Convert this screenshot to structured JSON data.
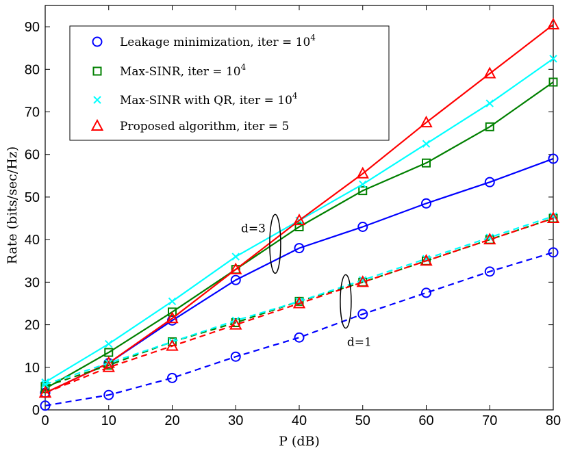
{
  "chart_data": {
    "type": "line",
    "xlabel": "P (dB)",
    "ylabel": "Rate (bits/sec/Hz)",
    "xlim": [
      0,
      80
    ],
    "ylim": [
      0,
      95
    ],
    "xticks": [
      "0",
      "10",
      "20",
      "30",
      "40",
      "50",
      "60",
      "70",
      "80"
    ],
    "yticks": [
      "0",
      "10",
      "20",
      "30",
      "40",
      "50",
      "60",
      "70",
      "80",
      "90"
    ],
    "grid": false,
    "legend_position": "top-left",
    "legend": [
      {
        "text": "Leakage minimization, iter = ",
        "sup_base": "10",
        "sup_exp": "4",
        "color": "#0000ff",
        "marker": "circle"
      },
      {
        "text": "Max-SINR, iter = ",
        "sup_base": "10",
        "sup_exp": "4",
        "color": "#008000",
        "marker": "square"
      },
      {
        "text": "Max-SINR with QR, iter = ",
        "sup_base": "10",
        "sup_exp": "4",
        "color": "#00ffff",
        "marker": "x"
      },
      {
        "text": "Proposed algorithm, iter = 5",
        "sup_base": "",
        "sup_exp": "",
        "color": "#ff0000",
        "marker": "triangle"
      }
    ],
    "x": [
      0,
      10,
      20,
      30,
      40,
      50,
      60,
      70,
      80
    ],
    "series": [
      {
        "name": "Leakage minimization d=3",
        "color": "#0000ff",
        "marker": "circle",
        "dash": "solid",
        "values": [
          4.0,
          11.0,
          21.0,
          30.5,
          38.0,
          43.0,
          48.5,
          53.5,
          59.0
        ]
      },
      {
        "name": "Max-SINR d=3",
        "color": "#008000",
        "marker": "square",
        "dash": "solid",
        "values": [
          5.0,
          13.5,
          23.0,
          33.0,
          43.0,
          51.5,
          58.0,
          66.5,
          77.0
        ]
      },
      {
        "name": "Max-SINR with QR d=3",
        "color": "#00ffff",
        "marker": "x",
        "dash": "solid",
        "values": [
          6.5,
          15.5,
          25.5,
          36.0,
          44.5,
          53.0,
          62.5,
          72.0,
          82.5
        ]
      },
      {
        "name": "Proposed algorithm d=3",
        "color": "#ff0000",
        "marker": "triangle",
        "dash": "solid",
        "values": [
          4.0,
          11.0,
          21.5,
          33.0,
          44.5,
          55.5,
          67.5,
          79.0,
          90.5
        ]
      },
      {
        "name": "Leakage minimization d=1",
        "color": "#0000ff",
        "marker": "circle",
        "dash": "dashed",
        "values": [
          1.0,
          3.5,
          7.5,
          12.5,
          17.0,
          22.5,
          27.5,
          32.5,
          37.0
        ]
      },
      {
        "name": "Max-SINR d=1",
        "color": "#008000",
        "marker": "square",
        "dash": "dashed",
        "values": [
          5.5,
          10.5,
          16.0,
          20.5,
          25.5,
          30.0,
          35.0,
          40.0,
          45.0
        ]
      },
      {
        "name": "Max-SINR with QR d=1",
        "color": "#00ffff",
        "marker": "x",
        "dash": "dashed",
        "values": [
          6.0,
          11.0,
          16.0,
          21.0,
          25.5,
          30.5,
          35.5,
          40.5,
          45.5
        ]
      },
      {
        "name": "Proposed algorithm d=1",
        "color": "#ff0000",
        "marker": "triangle",
        "dash": "dashed",
        "values": [
          4.0,
          10.0,
          15.0,
          20.0,
          25.0,
          30.0,
          35.0,
          40.0,
          45.0
        ]
      }
    ],
    "annotations": [
      {
        "text": "d=3",
        "x": 36,
        "y": 39
      },
      {
        "text": "d=1",
        "x": 47,
        "y": 25
      }
    ]
  }
}
